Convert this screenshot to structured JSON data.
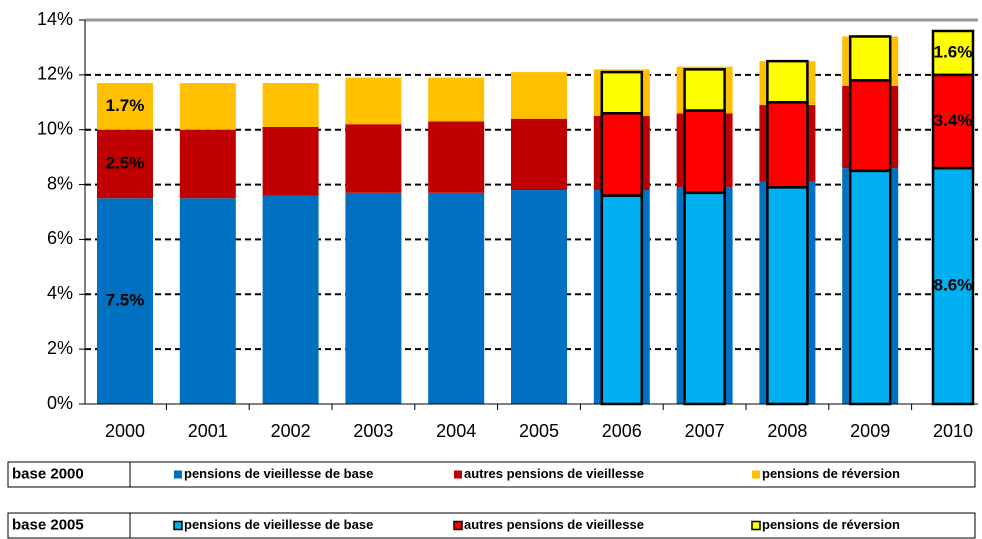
{
  "chart_data": {
    "type": "bar",
    "stacked": true,
    "grid": true,
    "categories": [
      "2000",
      "2001",
      "2002",
      "2003",
      "2004",
      "2005",
      "2006",
      "2007",
      "2008",
      "2009",
      "2010"
    ],
    "ylim": [
      0,
      14
    ],
    "yticks": [
      {
        "value": 0,
        "label": "0%"
      },
      {
        "value": 2,
        "label": "2%"
      },
      {
        "value": 4,
        "label": "4%"
      },
      {
        "value": 6,
        "label": "6%"
      },
      {
        "value": 8,
        "label": "8%"
      },
      {
        "value": 10,
        "label": "10%"
      },
      {
        "value": 12,
        "label": "12%"
      },
      {
        "value": 14,
        "label": "14%"
      }
    ],
    "bases": [
      {
        "name": "base 2000",
        "outline": false,
        "series": [
          {
            "name": "pensions de vieillesse de base",
            "color": "#0070c0",
            "values": [
              7.5,
              7.5,
              7.6,
              7.7,
              7.7,
              7.8,
              7.8,
              7.9,
              8.1,
              8.6,
              null
            ],
            "value_labels": [
              "7.5%",
              null,
              null,
              null,
              null,
              null,
              null,
              null,
              null,
              null,
              null
            ]
          },
          {
            "name": "autres pensions de vieillesse",
            "color": "#c00000",
            "values": [
              2.5,
              2.5,
              2.5,
              2.5,
              2.6,
              2.6,
              2.7,
              2.7,
              2.8,
              3.0,
              null
            ],
            "value_labels": [
              "2.5%",
              null,
              null,
              null,
              null,
              null,
              null,
              null,
              null,
              null,
              null
            ]
          },
          {
            "name": "pensions de réversion",
            "color": "#ffc000",
            "values": [
              1.7,
              1.7,
              1.6,
              1.7,
              1.6,
              1.7,
              1.7,
              1.7,
              1.6,
              1.8,
              null
            ],
            "value_labels": [
              "1.7%",
              null,
              null,
              null,
              null,
              null,
              null,
              null,
              null,
              null,
              null
            ]
          }
        ]
      },
      {
        "name": "base 2005",
        "outline": true,
        "series": [
          {
            "name": "pensions de vieillesse de base",
            "color": "#00b0f0",
            "values": [
              null,
              null,
              null,
              null,
              null,
              null,
              7.6,
              7.7,
              7.9,
              8.5,
              8.6
            ],
            "value_labels": [
              null,
              null,
              null,
              null,
              null,
              null,
              null,
              null,
              null,
              null,
              "8.6%"
            ]
          },
          {
            "name": "autres pensions de vieillesse",
            "color": "#ff0000",
            "values": [
              null,
              null,
              null,
              null,
              null,
              null,
              3.0,
              3.0,
              3.1,
              3.3,
              3.4
            ],
            "value_labels": [
              null,
              null,
              null,
              null,
              null,
              null,
              null,
              null,
              null,
              null,
              "3.4%"
            ]
          },
          {
            "name": "pensions de réversion",
            "color": "#ffff00",
            "values": [
              null,
              null,
              null,
              null,
              null,
              null,
              1.5,
              1.5,
              1.5,
              1.6,
              1.6
            ],
            "value_labels": [
              null,
              null,
              null,
              null,
              null,
              null,
              null,
              null,
              null,
              null,
              "1.6%"
            ]
          }
        ]
      }
    ]
  }
}
